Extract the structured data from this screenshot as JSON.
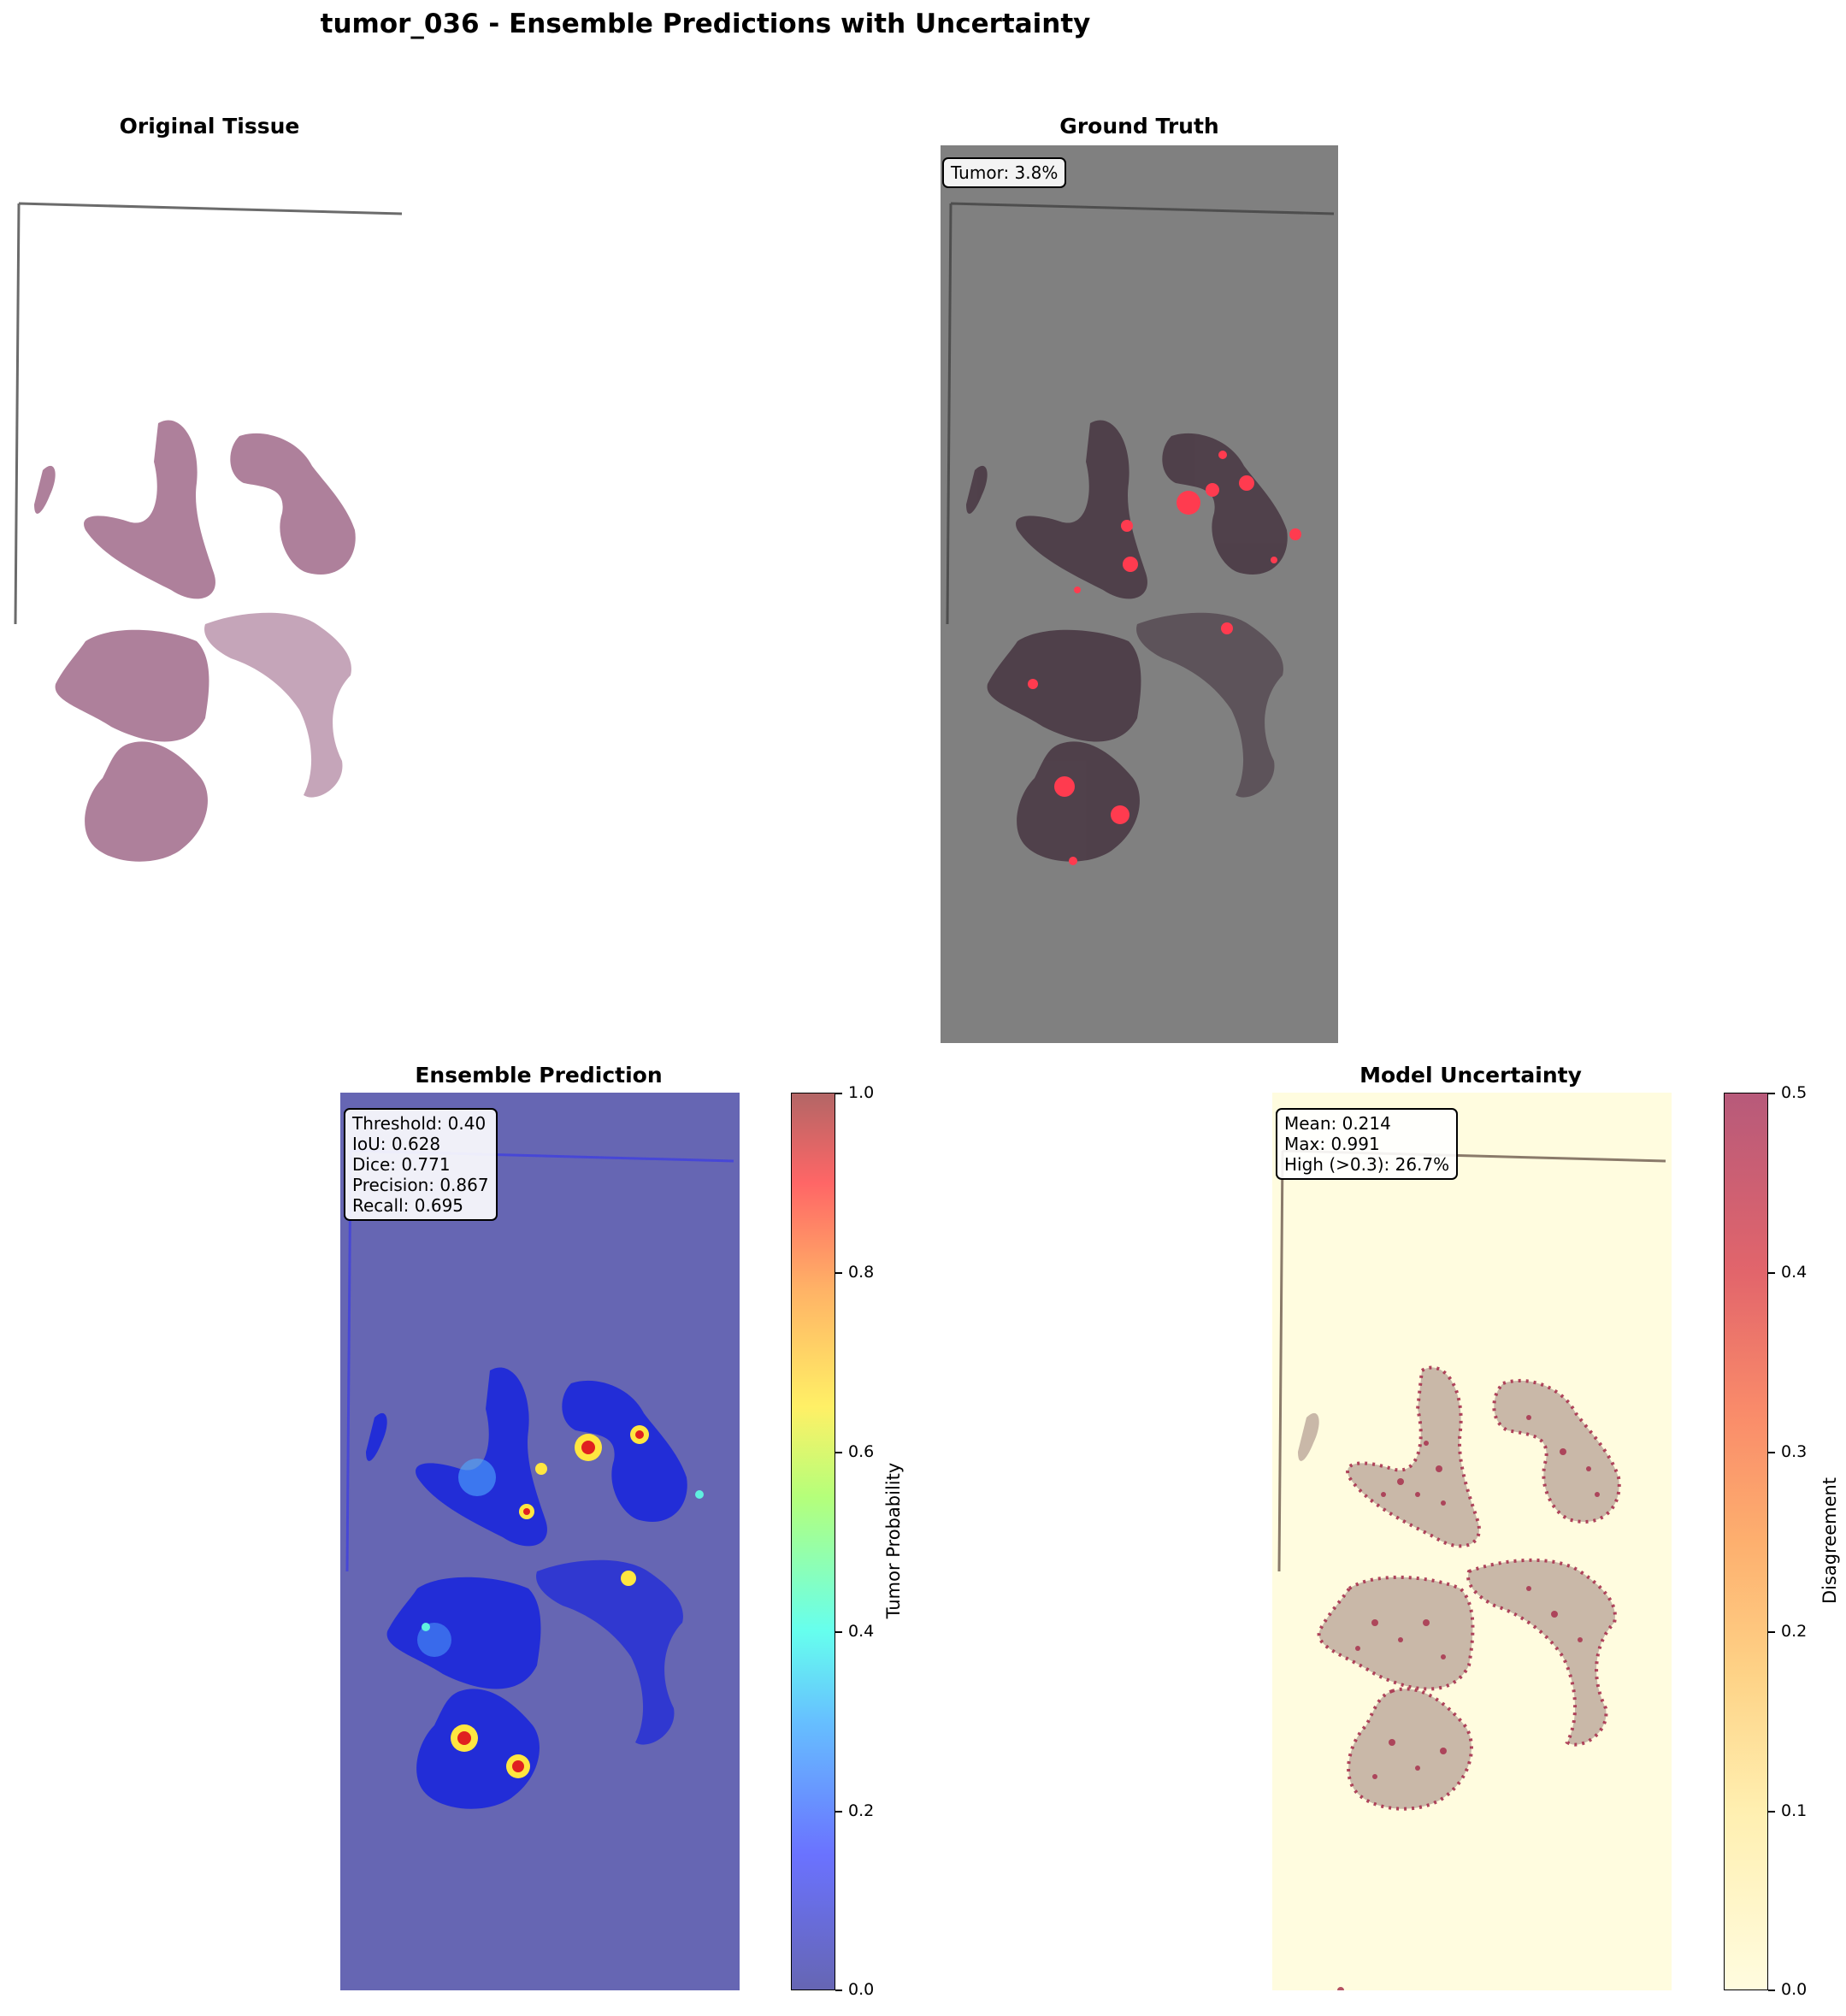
{
  "figure": {
    "title": "tumor_036 - Ensemble Predictions with Uncertainty"
  },
  "panels": {
    "original": {
      "title": "Original Tissue"
    },
    "ground_truth": {
      "title": "Ground Truth",
      "info": "Tumor: 3.8%"
    },
    "prediction": {
      "title": "Ensemble Prediction",
      "metrics": [
        "Threshold: 0.40",
        "IoU: 0.628",
        "Dice: 0.771",
        "Precision: 0.867",
        "Recall: 0.695"
      ],
      "colorbar": {
        "label": "Tumor Probability",
        "ticks": [
          "1.0",
          "0.8",
          "0.6",
          "0.4",
          "0.2",
          "0.0"
        ],
        "range": [
          0.0,
          1.0
        ]
      }
    },
    "uncertainty": {
      "title": "Model Uncertainty",
      "metrics": [
        "Mean: 0.214",
        "Max: 0.991",
        "High (>0.3): 26.7%"
      ],
      "colorbar": {
        "label": "Disagreement",
        "ticks": [
          "0.5",
          "0.4",
          "0.3",
          "0.2",
          "0.1",
          "0.0"
        ],
        "range": [
          0.0,
          0.5
        ]
      }
    }
  },
  "colors": {
    "tissue": "#a06a8a",
    "gt_background": "#808080",
    "tumor_mask": "#ff3b4f",
    "pred_background": "#6666b3",
    "unc_background": "#fffcdf",
    "unc_tissue": "#c9b8a8",
    "unc_speckle": "#a8324e"
  }
}
